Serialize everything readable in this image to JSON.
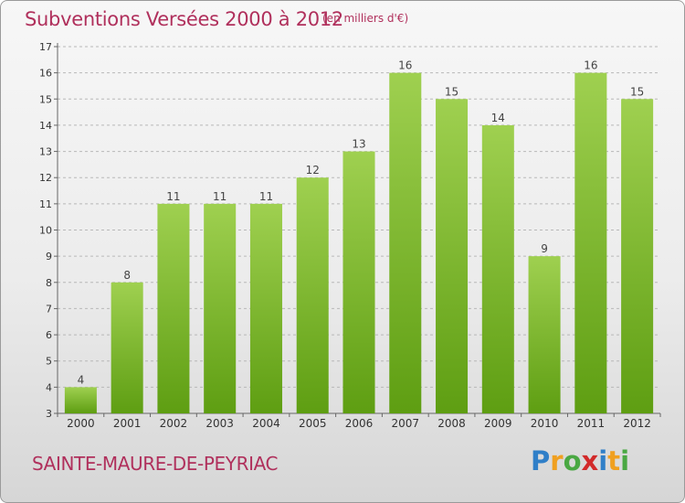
{
  "header": {
    "title": "Subventions Versées 2000 à 2012",
    "unit": "(en milliers d'€)"
  },
  "footer": {
    "commune": "SAINTE-MAURE-DE-PEYRIAC",
    "logo": {
      "text": "Proxiti",
      "letters": [
        {
          "ch": "P",
          "color": "#2f7fc8"
        },
        {
          "ch": "r",
          "color": "#f0a020"
        },
        {
          "ch": "o",
          "color": "#4aa843"
        },
        {
          "ch": "x",
          "color": "#d22a2a"
        },
        {
          "ch": "i",
          "color": "#2f7fc8"
        },
        {
          "ch": "t",
          "color": "#f0a020"
        },
        {
          "ch": "i",
          "color": "#4aa843"
        }
      ]
    }
  },
  "colors": {
    "title": "#b0305c",
    "bar_top": "#9fd050",
    "bar_bottom": "#5e9e12",
    "grid": "#b8b8b8"
  },
  "chart_data": {
    "type": "bar",
    "categories": [
      "2000",
      "2001",
      "2002",
      "2003",
      "2004",
      "2005",
      "2006",
      "2007",
      "2008",
      "2009",
      "2010",
      "2011",
      "2012"
    ],
    "values": [
      4,
      8,
      11,
      11,
      11,
      12,
      13,
      16,
      15,
      14,
      9,
      16,
      15
    ],
    "data_labels": [
      "4",
      "8",
      "11",
      "11",
      "11",
      "12",
      "13",
      "16",
      "15",
      "14",
      "9",
      "16",
      "15"
    ],
    "title": "Subventions Versées 2000 à 2012",
    "xlabel": "",
    "ylabel": "",
    "ylim": [
      3,
      17
    ],
    "yticks": [
      3,
      4,
      5,
      6,
      7,
      8,
      9,
      10,
      11,
      12,
      13,
      14,
      15,
      16,
      17
    ],
    "grid": true,
    "grid_style": "dashed-horizontal"
  }
}
